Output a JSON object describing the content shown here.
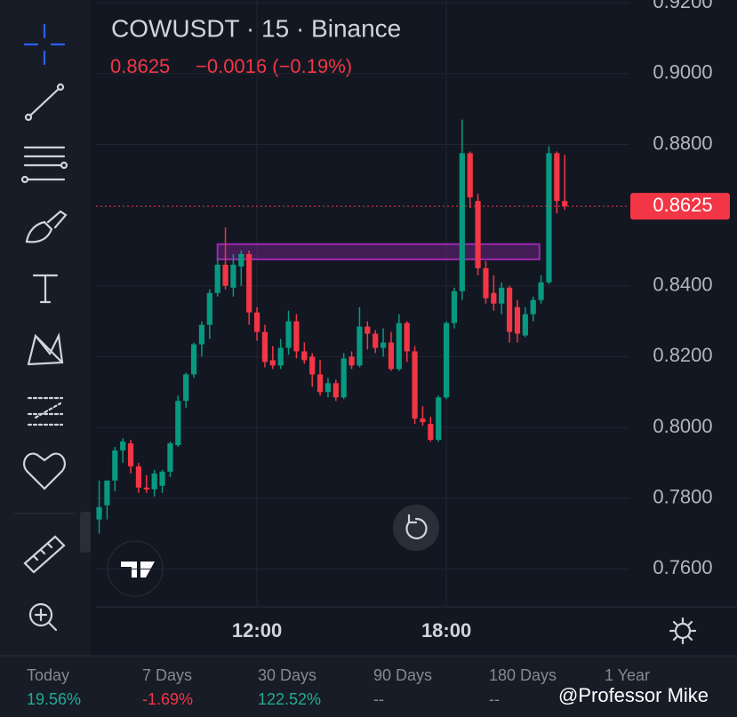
{
  "header": {
    "symbol": "COWUSDT · 15 · Binance",
    "price": "0.8625",
    "change": "−0.0016 (−0.19%)"
  },
  "chart_data": {
    "type": "candlestick",
    "x": [
      7.0,
      7.25,
      7.5,
      7.75,
      8.0,
      8.25,
      8.5,
      8.75,
      9.0,
      9.25,
      9.5,
      9.75,
      10.0,
      10.25,
      10.5,
      10.75,
      11.0,
      11.25,
      11.5,
      11.75,
      12.0,
      12.25,
      12.5,
      12.75,
      13.0,
      13.25,
      13.5,
      13.75,
      14.0,
      14.25,
      14.5,
      14.75,
      15.0,
      15.25,
      15.5,
      15.75,
      16.0,
      16.25,
      16.5,
      16.75,
      17.0,
      17.25,
      17.5,
      17.75,
      18.0,
      18.25,
      18.5,
      18.75,
      19.0,
      19.25,
      19.5,
      19.75,
      20.0,
      20.25,
      20.5,
      20.75,
      21.0,
      21.25,
      21.5,
      21.75
    ],
    "open": [
      0.774,
      0.778,
      0.785,
      0.7935,
      0.7955,
      0.789,
      0.783,
      0.7825,
      0.7835,
      0.7875,
      0.795,
      0.8075,
      0.815,
      0.8235,
      0.829,
      0.838,
      0.846,
      0.8395,
      0.8455,
      0.849,
      0.8325,
      0.827,
      0.819,
      0.8175,
      0.8225,
      0.83,
      0.8215,
      0.82,
      0.815,
      0.81,
      0.8125,
      0.8085,
      0.82,
      0.8175,
      0.8285,
      0.8265,
      0.8225,
      0.824,
      0.8165,
      0.8295,
      0.8215,
      0.8025,
      0.801,
      0.7965,
      0.8085,
      0.8295,
      0.8385,
      0.8775,
      0.864,
      0.845,
      0.838,
      0.835,
      0.8395,
      0.834,
      0.826,
      0.832,
      0.836,
      0.841,
      0.8775,
      0.864
    ],
    "high": [
      0.785,
      0.784,
      0.7945,
      0.797,
      0.7965,
      0.79,
      0.7865,
      0.788,
      0.788,
      0.796,
      0.809,
      0.8155,
      0.824,
      0.83,
      0.839,
      0.848,
      0.8565,
      0.849,
      0.85,
      0.85,
      0.834,
      0.829,
      0.823,
      0.825,
      0.833,
      0.832,
      0.824,
      0.821,
      0.819,
      0.814,
      0.8135,
      0.821,
      0.8215,
      0.834,
      0.83,
      0.8275,
      0.828,
      0.827,
      0.832,
      0.83,
      0.823,
      0.806,
      0.803,
      0.809,
      0.83,
      0.8395,
      0.887,
      0.878,
      0.866,
      0.847,
      0.843,
      0.841,
      0.84,
      0.836,
      0.834,
      0.837,
      0.843,
      0.8795,
      0.878,
      0.877
    ],
    "low": [
      0.77,
      0.774,
      0.782,
      0.79,
      0.787,
      0.7815,
      0.7815,
      0.7805,
      0.7815,
      0.786,
      0.7945,
      0.8055,
      0.814,
      0.82,
      0.825,
      0.837,
      0.839,
      0.837,
      0.84,
      0.829,
      0.8245,
      0.817,
      0.8165,
      0.8165,
      0.8205,
      0.8195,
      0.818,
      0.8115,
      0.809,
      0.8085,
      0.8075,
      0.808,
      0.8165,
      0.817,
      0.822,
      0.821,
      0.82,
      0.816,
      0.816,
      0.8185,
      0.801,
      0.8005,
      0.796,
      0.796,
      0.808,
      0.828,
      0.836,
      0.862,
      0.843,
      0.835,
      0.833,
      0.832,
      0.824,
      0.824,
      0.8255,
      0.83,
      0.835,
      0.8405,
      0.8605,
      0.8615
    ],
    "close": [
      0.7775,
      0.785,
      0.7935,
      0.796,
      0.789,
      0.783,
      0.7825,
      0.787,
      0.7875,
      0.7955,
      0.8075,
      0.815,
      0.8235,
      0.829,
      0.838,
      0.846,
      0.84,
      0.846,
      0.849,
      0.8325,
      0.827,
      0.8185,
      0.8175,
      0.8225,
      0.83,
      0.8215,
      0.819,
      0.815,
      0.81,
      0.8125,
      0.8085,
      0.8195,
      0.8175,
      0.8285,
      0.8265,
      0.8225,
      0.824,
      0.8165,
      0.8295,
      0.8215,
      0.8025,
      0.8015,
      0.7965,
      0.8085,
      0.8295,
      0.8385,
      0.8775,
      0.865,
      0.845,
      0.8365,
      0.835,
      0.8395,
      0.827,
      0.8265,
      0.832,
      0.836,
      0.841,
      0.8775,
      0.864,
      0.8625
    ],
    "up_color": "#089981",
    "down_color": "#f23645",
    "xlim": [
      6.9,
      23.8
    ],
    "xticks": [
      {
        "value": 12,
        "label": "12:00"
      },
      {
        "value": 18,
        "label": "18:00"
      }
    ],
    "ylim": [
      0.7493,
      0.9208
    ],
    "yticks": [
      {
        "value": 0.76,
        "label": "0.7600"
      },
      {
        "value": 0.78,
        "label": "0.7800"
      },
      {
        "value": 0.8,
        "label": "0.8000"
      },
      {
        "value": 0.82,
        "label": "0.8200"
      },
      {
        "value": 0.84,
        "label": "0.8400"
      },
      {
        "value": 0.88,
        "label": "0.8800"
      },
      {
        "value": 0.9,
        "label": "0.9000"
      },
      {
        "value": 0.92,
        "label": "0.9200"
      }
    ],
    "grid": true,
    "last_price": 0.8625,
    "zone": {
      "x": [
        10.75,
        20.95
      ],
      "y": [
        0.8475,
        0.8518
      ],
      "color": "#9c27b0"
    }
  },
  "periods": [
    {
      "label": "Today",
      "value": "19.56%"
    },
    {
      "label": "7 Days",
      "value": "-1.69%"
    },
    {
      "label": "30 Days",
      "value": "122.52%"
    },
    {
      "label": "90 Days",
      "value": "--"
    },
    {
      "label": "180 Days",
      "value": "--"
    },
    {
      "label": "1 Year"
    }
  ],
  "watermark": "@Professor Mike"
}
